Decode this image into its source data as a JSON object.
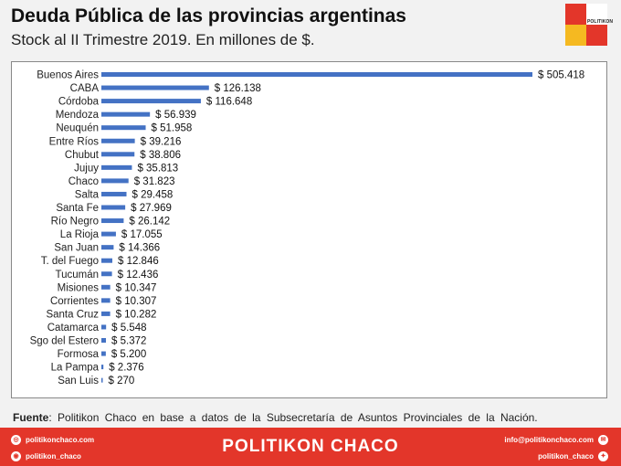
{
  "header": {
    "title": "Deuda Pública de las provincias argentinas",
    "subtitle": "Stock al II Trimestre 2019. En millones de $.",
    "logo_text": "POLITIKON"
  },
  "colors": {
    "bar": "#4472c4",
    "accent": "#e3362a",
    "yellow": "#f5b921"
  },
  "chart_data": {
    "type": "bar",
    "orientation": "horizontal",
    "title": "Deuda Pública de las provincias argentinas",
    "subtitle": "Stock al II Trimestre 2019. En millones de $.",
    "categories": [
      "Buenos Aires",
      "CABA",
      "Córdoba",
      "Mendoza",
      "Neuquén",
      "Entre Ríos",
      "Chubut",
      "Jujuy",
      "Chaco",
      "Salta",
      "Santa Fe",
      "Río Negro",
      "La Rioja",
      "San Juan",
      "T. del Fuego",
      "Tucumán",
      "Misiones",
      "Corrientes",
      "Santa Cruz",
      "Catamarca",
      "Sgo del Estero",
      "Formosa",
      "La Pampa",
      "San Luis"
    ],
    "values": [
      505418,
      126138,
      116648,
      56939,
      51958,
      39216,
      38806,
      35813,
      31823,
      29458,
      27969,
      26142,
      17055,
      14366,
      12846,
      12436,
      10347,
      10307,
      10282,
      5548,
      5372,
      5200,
      2376,
      270
    ],
    "labels": [
      "$ 505.418",
      "$ 126.138",
      "$ 116.648",
      "$ 56.939",
      "$ 51.958",
      "$ 39.216",
      "$ 38.806",
      "$ 35.813",
      "$ 31.823",
      "$ 29.458",
      "$ 27.969",
      "$ 26.142",
      "$ 17.055",
      "$ 14.366",
      "$ 12.846",
      "$ 12.436",
      "$ 10.347",
      "$ 10.307",
      "$ 10.282",
      "$ 5.548",
      "$ 5.372",
      "$ 5.200",
      "$ 2.376",
      "$ 270"
    ],
    "xlim": [
      0,
      505418
    ],
    "grid": false
  },
  "source": {
    "label": "Fuente",
    "text": ": Politikon Chaco en base a datos de la Subsecretaría de Asuntos Provinciales de la Nación."
  },
  "footer": {
    "website": "politikonchaco.com",
    "instagram": "politikon_chaco",
    "brand": "POLITIKON CHACO",
    "email": "info@politikonchaco.com",
    "twitter": "politikon_chaco"
  }
}
